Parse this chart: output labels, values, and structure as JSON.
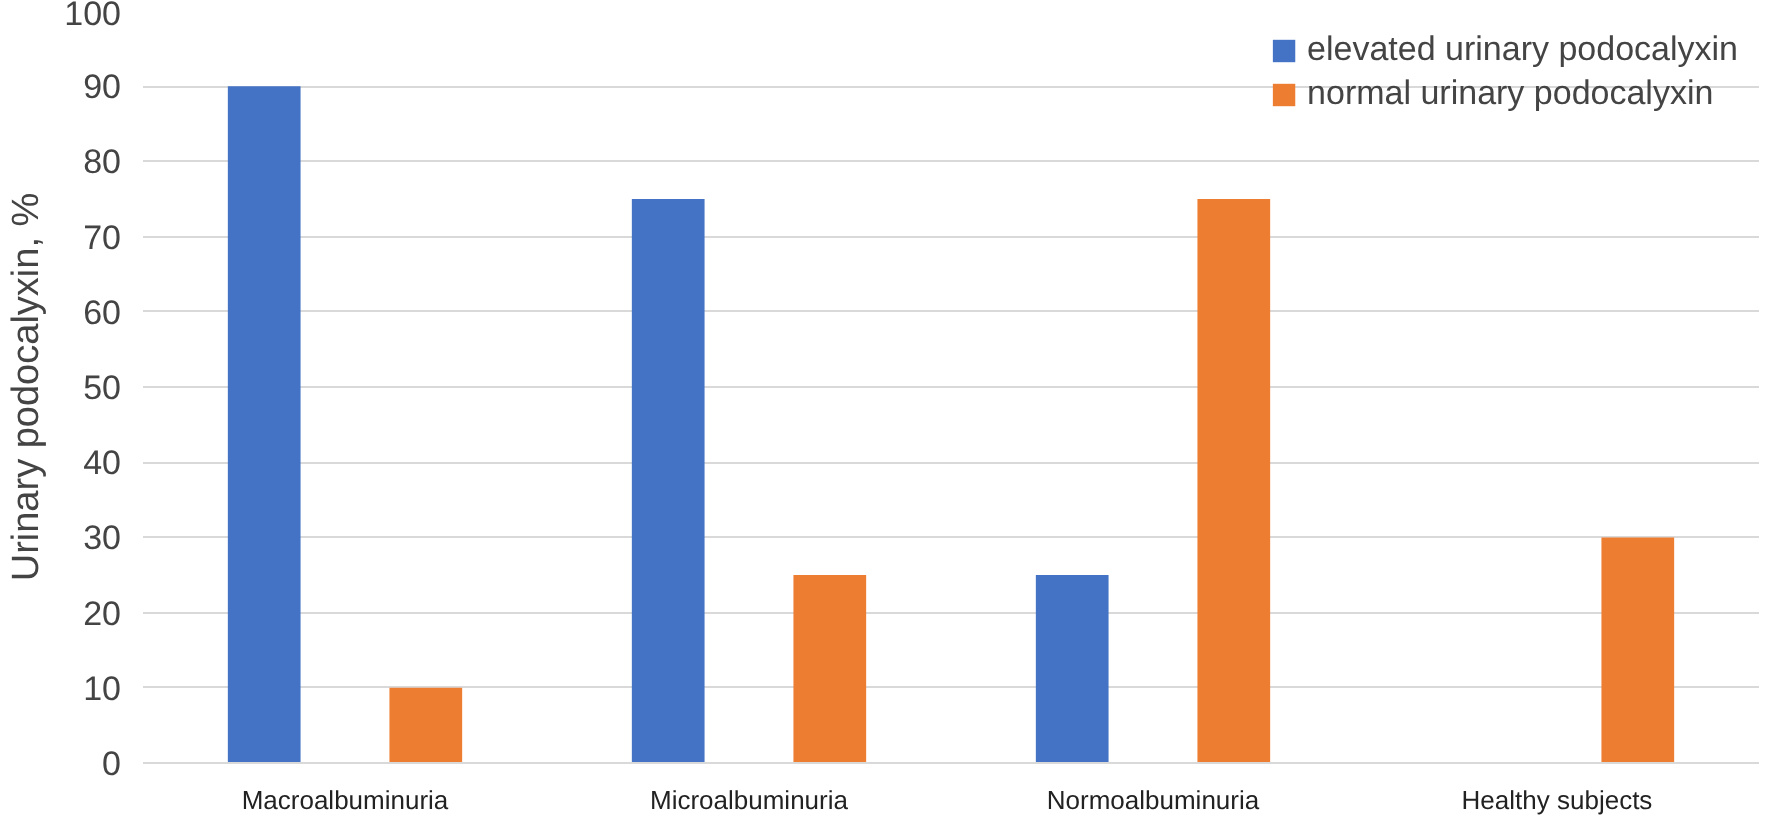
{
  "chart_data": {
    "type": "bar",
    "ylabel": "Urinary podocalyxin, %",
    "categories": [
      "Macroalbuminuria",
      "Microalbuminuria",
      "Normoalbuminuria",
      "Healthy subjects"
    ],
    "series": [
      {
        "name": "elevated urinary podocalyxin",
        "color": "#4472c4",
        "values": [
          90,
          75,
          25,
          0
        ]
      },
      {
        "name": "normal urinary podocalyxin",
        "color": "#ed7d31",
        "values": [
          10,
          25,
          75,
          30
        ]
      }
    ],
    "ylim": [
      0,
      100
    ],
    "yticks": [
      0,
      10,
      20,
      30,
      40,
      50,
      60,
      70,
      80,
      90,
      100
    ],
    "grid": "y",
    "legend": "top right"
  }
}
